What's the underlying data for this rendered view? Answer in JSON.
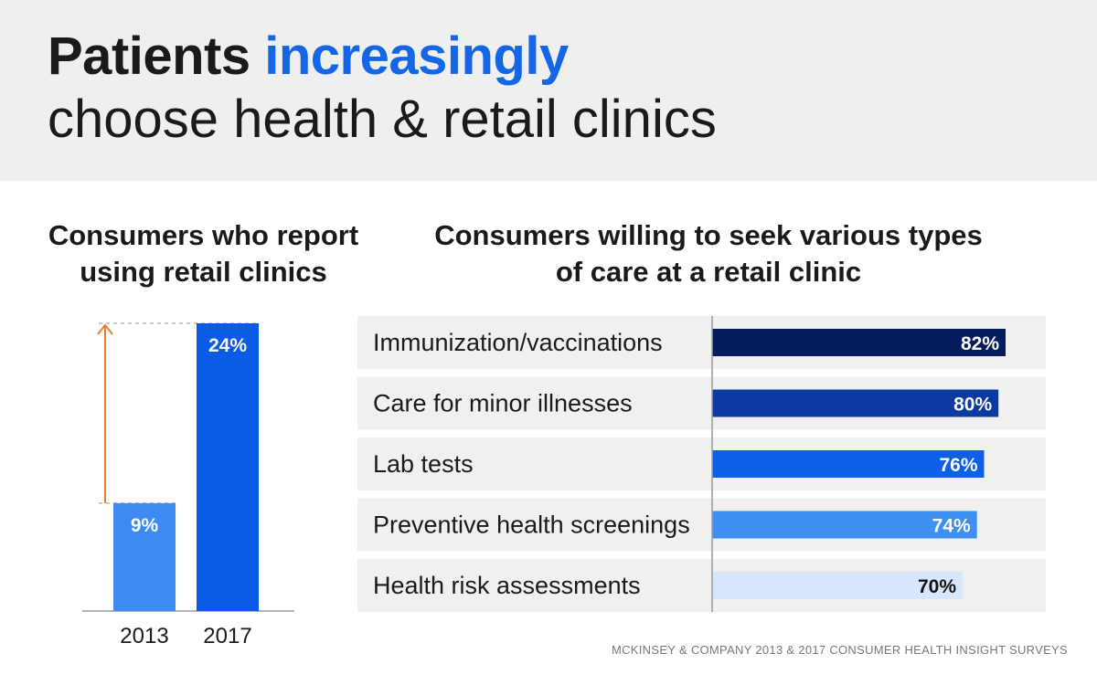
{
  "title": {
    "part1": "Patients ",
    "highlight": "increasingly",
    "line2": "choose health & retail clinics"
  },
  "source": "MCKINSEY & COMPANY 2013 & 2017 CONSUMER HEALTH INSIGHT SURVEYS",
  "colors": {
    "header_bg": "#efefef",
    "highlight": "#1466e6",
    "arrow": "#f07d2a"
  },
  "chart_data": [
    {
      "type": "bar",
      "title": "Consumers who report using retail clinics",
      "categories": [
        "2013",
        "2017"
      ],
      "values": [
        9,
        24
      ],
      "value_labels": [
        "9%",
        "24%"
      ],
      "colors": [
        "#3d8bf2",
        "#0a5ce6"
      ],
      "ylim": [
        0,
        24
      ],
      "annotation": "arrow-from-9-to-24"
    },
    {
      "type": "bar",
      "orientation": "horizontal",
      "title": "Consumers willing to seek various types of care at a retail clinic",
      "categories": [
        "Immunization/vaccinations",
        "Care for minor illnesses",
        "Lab tests",
        "Preventive health screenings",
        "Health risk assessments"
      ],
      "values": [
        82,
        80,
        76,
        74,
        70
      ],
      "value_labels": [
        "82%",
        "80%",
        "76%",
        "74%",
        "70%"
      ],
      "colors": [
        "#041c5c",
        "#0b3aa3",
        "#0c5fe6",
        "#3d8ff2",
        "#d8e6fb"
      ],
      "label_colors": [
        "#ffffff",
        "#ffffff",
        "#ffffff",
        "#ffffff",
        "#111111"
      ]
    }
  ]
}
